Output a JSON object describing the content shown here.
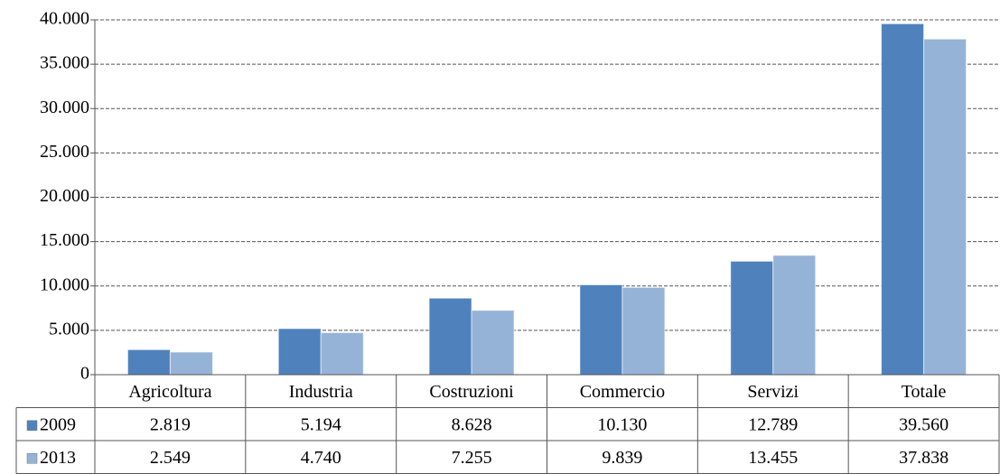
{
  "chart_data": {
    "type": "bar",
    "categories": [
      "Agricoltura",
      "Industria",
      "Costruzioni",
      "Commercio",
      "Servizi",
      "Totale"
    ],
    "series": [
      {
        "name": "2009",
        "color": "#4f81bd",
        "values": [
          2819,
          5194,
          8628,
          10130,
          12789,
          39560
        ],
        "value_labels": [
          "2.819",
          "5.194",
          "8.628",
          "10.130",
          "12.789",
          "39.560"
        ]
      },
      {
        "name": "2013",
        "color": "#95b3d7",
        "values": [
          2549,
          4740,
          7255,
          9839,
          13455,
          37838
        ],
        "value_labels": [
          "2.549",
          "4.740",
          "7.255",
          "9.839",
          "13.455",
          "37.838"
        ]
      }
    ],
    "ylim": [
      0,
      40000
    ],
    "yticks": [
      0,
      {
        "value": 5000,
        "label": "5.000"
      },
      {
        "value": 10000,
        "label": "10.000"
      },
      {
        "value": 15000,
        "label": "15.000"
      },
      {
        "value": 20000,
        "label": "20.000"
      },
      {
        "value": 25000,
        "label": "25.000"
      },
      {
        "value": 30000,
        "label": "30.000"
      },
      {
        "value": 35000,
        "label": "35.000"
      },
      {
        "value": 40000,
        "label": "40.000"
      }
    ],
    "grid": true,
    "legend": "table"
  }
}
